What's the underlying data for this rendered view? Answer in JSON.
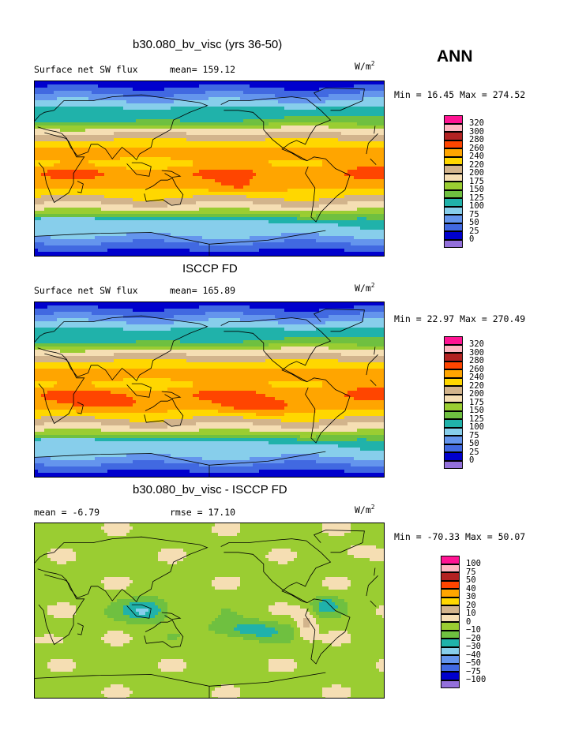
{
  "season": "ANN",
  "units_base": "W/m",
  "units_exp": "2",
  "land_color": "#000000",
  "panels": [
    {
      "title": "b30.080_bv_visc (yrs 36-50)",
      "left_label": "Surface net SW flux",
      "center_label": "mean= 159.12",
      "min_label": "Min =",
      "min_value": "16.45",
      "max_label": "Max =",
      "max_value": "274.52",
      "levels": [
        "320",
        "300",
        "280",
        "260",
        "240",
        "220",
        "200",
        "175",
        "150",
        "125",
        "100",
        "75",
        "50",
        "25",
        "0"
      ],
      "colors": [
        "#ff1493",
        "#ffb6c1",
        "#b22222",
        "#ff4500",
        "#ffa500",
        "#ffd700",
        "#d2b48c",
        "#f5deb3",
        "#9acd32",
        "#6fc040",
        "#20b2aa",
        "#87ceeb",
        "#6495ed",
        "#4169e1",
        "#0000cd",
        "#9370db"
      ],
      "field": "sw_model"
    },
    {
      "title": "ISCCP FD",
      "left_label": "Surface net SW flux",
      "center_label": "mean= 165.89",
      "min_label": "Min =",
      "min_value": "22.97",
      "max_label": "Max =",
      "max_value": "270.49",
      "levels": [
        "320",
        "300",
        "280",
        "260",
        "240",
        "220",
        "200",
        "175",
        "150",
        "125",
        "100",
        "75",
        "50",
        "25",
        "0"
      ],
      "colors": [
        "#ff1493",
        "#ffb6c1",
        "#b22222",
        "#ff4500",
        "#ffa500",
        "#ffd700",
        "#d2b48c",
        "#f5deb3",
        "#9acd32",
        "#6fc040",
        "#20b2aa",
        "#87ceeb",
        "#6495ed",
        "#4169e1",
        "#0000cd",
        "#9370db"
      ],
      "field": "sw_obs"
    },
    {
      "title": "b30.080_bv_visc - ISCCP FD",
      "left_label": "mean =  -6.79",
      "center_label": "rmse =  17.10",
      "min_label": "Min =",
      "min_value": "-70.33",
      "max_label": "Max =",
      "max_value": "50.07",
      "levels": [
        "100",
        "75",
        "50",
        "40",
        "30",
        "20",
        "10",
        "0",
        "−10",
        "−20",
        "−30",
        "−40",
        "−50",
        "−75",
        "−100"
      ],
      "colors": [
        "#ff1493",
        "#ffb6c1",
        "#b22222",
        "#ff4500",
        "#ffa500",
        "#ffd700",
        "#d2b48c",
        "#f5deb3",
        "#9acd32",
        "#6fc040",
        "#20b2aa",
        "#87ceeb",
        "#6495ed",
        "#4169e1",
        "#0000cd",
        "#9370db"
      ],
      "field": "diff"
    }
  ]
}
